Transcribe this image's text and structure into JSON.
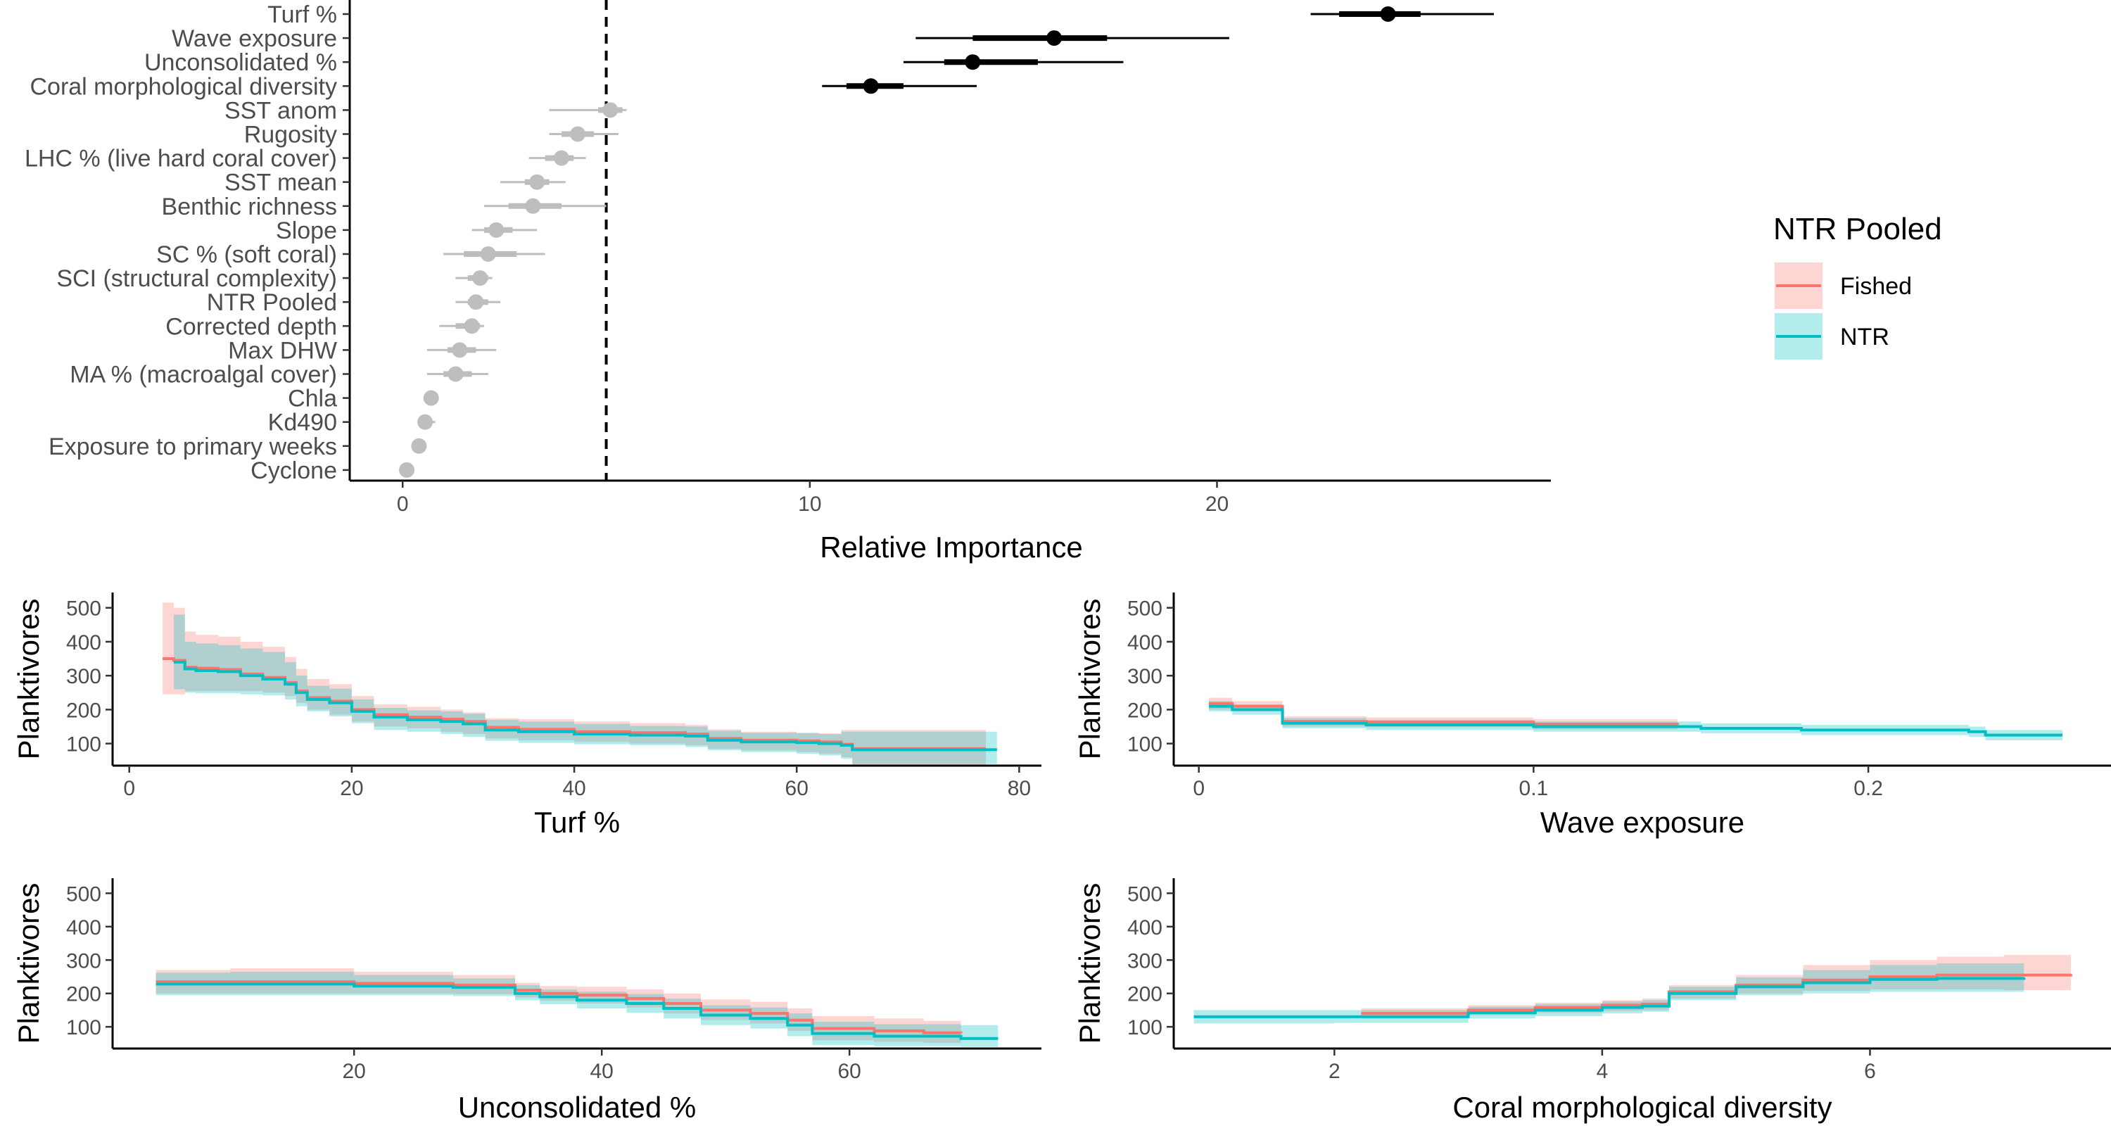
{
  "colors": {
    "fished": "#F8766D",
    "fished_band": "#F8766D",
    "ntr": "#00BFC4",
    "ntr_band": "#00BFC4",
    "important": "#000000",
    "unimportant": "#BEBEBE",
    "overlap_band": "#7F9A9A"
  },
  "legend": {
    "title": "NTR Pooled",
    "placement": "right",
    "items": [
      {
        "label": "Fished",
        "color_key": "fished"
      },
      {
        "label": "NTR",
        "color_key": "ntr"
      }
    ]
  },
  "chart_data": [
    {
      "id": "importance",
      "type": "dot-interval",
      "xlabel": "Relative Importance",
      "ylabel": "",
      "xlim": [
        -1.3,
        28.2
      ],
      "xticks": [
        0,
        10,
        20
      ],
      "threshold": 5,
      "grid": false,
      "variables": [
        {
          "label": "Turf %",
          "value": 24.2,
          "inner": [
            23.0,
            25.0
          ],
          "outer": [
            22.3,
            26.8
          ],
          "important": true
        },
        {
          "label": "Wave exposure",
          "value": 16.0,
          "inner": [
            14.0,
            17.3
          ],
          "outer": [
            12.6,
            20.3
          ],
          "important": true
        },
        {
          "label": "Unconsolidated %",
          "value": 14.0,
          "inner": [
            13.3,
            15.6
          ],
          "outer": [
            12.3,
            17.7
          ],
          "important": true
        },
        {
          "label": "Coral morphological diversity",
          "value": 11.5,
          "inner": [
            10.9,
            12.3
          ],
          "outer": [
            10.3,
            14.1
          ],
          "important": true
        },
        {
          "label": "SST anom",
          "value": 5.1,
          "inner": [
            4.8,
            5.4
          ],
          "outer": [
            3.6,
            5.5
          ],
          "important": false
        },
        {
          "label": "Rugosity",
          "value": 4.3,
          "inner": [
            3.9,
            4.7
          ],
          "outer": [
            3.6,
            5.3
          ],
          "important": false
        },
        {
          "label": "LHC % (live hard coral cover)",
          "value": 3.9,
          "inner": [
            3.5,
            4.2
          ],
          "outer": [
            3.1,
            4.5
          ],
          "important": false
        },
        {
          "label": "SST mean",
          "value": 3.3,
          "inner": [
            3.0,
            3.6
          ],
          "outer": [
            2.4,
            4.0
          ],
          "important": false
        },
        {
          "label": "Benthic richness",
          "value": 3.2,
          "inner": [
            2.6,
            3.9
          ],
          "outer": [
            2.0,
            5.0
          ],
          "important": false
        },
        {
          "label": "Slope",
          "value": 2.3,
          "inner": [
            2.0,
            2.7
          ],
          "outer": [
            1.7,
            3.3
          ],
          "important": false
        },
        {
          "label": "SC % (soft coral)",
          "value": 2.1,
          "inner": [
            1.5,
            2.8
          ],
          "outer": [
            1.0,
            3.5
          ],
          "important": false
        },
        {
          "label": "SCI (structural complexity)",
          "value": 1.9,
          "inner": [
            1.6,
            2.1
          ],
          "outer": [
            1.3,
            2.2
          ],
          "important": false
        },
        {
          "label": "NTR Pooled",
          "value": 1.8,
          "inner": [
            1.6,
            2.1
          ],
          "outer": [
            1.3,
            2.4
          ],
          "important": false
        },
        {
          "label": "Corrected depth",
          "value": 1.7,
          "inner": [
            1.3,
            1.9
          ],
          "outer": [
            0.9,
            2.0
          ],
          "important": false
        },
        {
          "label": "Max DHW",
          "value": 1.4,
          "inner": [
            1.1,
            1.8
          ],
          "outer": [
            0.6,
            2.3
          ],
          "important": false
        },
        {
          "label": "MA % (macroalgal cover)",
          "value": 1.3,
          "inner": [
            1.0,
            1.7
          ],
          "outer": [
            0.6,
            2.1
          ],
          "important": false
        },
        {
          "label": "Chla",
          "value": 0.7,
          "inner": [
            0.6,
            0.8
          ],
          "outer": [
            0.55,
            0.85
          ],
          "important": false
        },
        {
          "label": "Kd490",
          "value": 0.55,
          "inner": [
            0.45,
            0.7
          ],
          "outer": [
            0.4,
            0.8
          ],
          "important": false
        },
        {
          "label": "Exposure to primary weeks",
          "value": 0.4,
          "inner": [
            0.35,
            0.5
          ],
          "outer": [
            0.3,
            0.55
          ],
          "important": false
        },
        {
          "label": "Cyclone",
          "value": 0.1,
          "inner": [
            0.05,
            0.15
          ],
          "outer": [
            0.0,
            0.2
          ],
          "important": false
        }
      ]
    },
    {
      "id": "pdp-turf",
      "type": "line",
      "xlabel": "Turf %",
      "ylabel": "Planktivores",
      "xlim": [
        -1.5,
        82
      ],
      "ylim": [
        35,
        545
      ],
      "xticks": [
        0,
        20,
        40,
        60,
        80
      ],
      "yticks": [
        100,
        200,
        300,
        400,
        500
      ],
      "series": [
        {
          "name": "Fished",
          "color_key": "fished",
          "x": [
            3,
            4,
            5,
            6,
            8,
            10,
            12,
            14,
            15,
            16,
            18,
            20,
            22,
            25,
            28,
            30,
            32,
            35,
            40,
            45,
            50,
            52,
            55,
            60,
            62,
            64,
            65,
            70,
            77
          ],
          "y": [
            350,
            345,
            325,
            322,
            318,
            305,
            295,
            280,
            255,
            235,
            225,
            200,
            185,
            178,
            172,
            165,
            148,
            142,
            135,
            132,
            128,
            115,
            110,
            108,
            105,
            98,
            85,
            85,
            85
          ],
          "lower": [
            245,
            245,
            255,
            255,
            255,
            255,
            250,
            240,
            220,
            200,
            185,
            165,
            150,
            145,
            135,
            128,
            115,
            110,
            105,
            100,
            95,
            85,
            80,
            75,
            70,
            60,
            35,
            35,
            35
          ],
          "upper": [
            515,
            500,
            430,
            420,
            415,
            400,
            385,
            355,
            320,
            290,
            275,
            240,
            215,
            208,
            200,
            192,
            175,
            172,
            165,
            160,
            155,
            142,
            135,
            132,
            130,
            140,
            140,
            140,
            140
          ]
        },
        {
          "name": "NTR",
          "color_key": "ntr",
          "x": [
            4,
            5,
            6,
            8,
            10,
            12,
            14,
            15,
            16,
            18,
            20,
            22,
            25,
            28,
            30,
            32,
            35,
            40,
            45,
            50,
            52,
            55,
            60,
            62,
            64,
            65,
            70,
            78
          ],
          "y": [
            340,
            320,
            315,
            312,
            300,
            290,
            275,
            250,
            230,
            220,
            195,
            178,
            170,
            165,
            158,
            140,
            135,
            128,
            125,
            122,
            110,
            105,
            103,
            100,
            95,
            82,
            82,
            82
          ],
          "lower": [
            260,
            250,
            248,
            248,
            245,
            242,
            230,
            210,
            195,
            180,
            160,
            140,
            135,
            128,
            120,
            108,
            102,
            98,
            95,
            90,
            80,
            75,
            70,
            65,
            55,
            40,
            40,
            40
          ],
          "upper": [
            480,
            400,
            395,
            390,
            380,
            370,
            340,
            300,
            270,
            262,
            230,
            205,
            198,
            195,
            188,
            170,
            165,
            158,
            152,
            150,
            138,
            132,
            130,
            128,
            135,
            135,
            135,
            135
          ]
        }
      ]
    },
    {
      "id": "pdp-wave",
      "type": "line",
      "xlabel": "Wave exposure",
      "ylabel": "Planktivores",
      "xlim": [
        -0.0075,
        0.2725
      ],
      "ylim": [
        35,
        545
      ],
      "xticks": [
        0.0,
        0.1,
        0.2
      ],
      "series": [
        {
          "name": "Fished",
          "color_key": "fished",
          "x": [
            0.003,
            0.01,
            0.025,
            0.05,
            0.1,
            0.143
          ],
          "y": [
            218,
            210,
            165,
            163,
            157,
            155
          ],
          "lower": [
            200,
            195,
            150,
            148,
            142,
            140
          ],
          "upper": [
            235,
            225,
            180,
            177,
            172,
            170
          ]
        },
        {
          "name": "NTR",
          "color_key": "ntr",
          "x": [
            0.003,
            0.01,
            0.025,
            0.05,
            0.1,
            0.15,
            0.18,
            0.23,
            0.235,
            0.258
          ],
          "y": [
            210,
            200,
            160,
            155,
            150,
            145,
            140,
            135,
            125,
            125
          ],
          "lower": [
            195,
            185,
            145,
            140,
            135,
            130,
            125,
            120,
            110,
            110
          ],
          "upper": [
            225,
            215,
            175,
            170,
            165,
            160,
            155,
            150,
            140,
            140
          ]
        }
      ]
    },
    {
      "id": "pdp-uncons",
      "type": "line",
      "xlabel": "Unconsolidated %",
      "ylabel": "Planktivores",
      "xlim": [
        0.5,
        75.5
      ],
      "ylim": [
        35,
        545
      ],
      "xticks": [
        20,
        40,
        60
      ],
      "series": [
        {
          "name": "Fished",
          "color_key": "fished",
          "x": [
            4,
            10,
            20,
            28,
            33,
            35,
            38,
            42,
            45,
            48,
            52,
            55,
            57,
            62,
            66,
            69
          ],
          "y": [
            235,
            235,
            230,
            225,
            210,
            200,
            195,
            185,
            170,
            150,
            140,
            120,
            95,
            88,
            82,
            80
          ],
          "lower": [
            200,
            200,
            200,
            198,
            188,
            178,
            170,
            158,
            140,
            120,
            110,
            88,
            60,
            55,
            52,
            50
          ],
          "upper": [
            270,
            275,
            265,
            255,
            232,
            222,
            220,
            212,
            200,
            182,
            175,
            155,
            132,
            125,
            118,
            115
          ]
        },
        {
          "name": "NTR",
          "color_key": "ntr",
          "x": [
            4,
            10,
            20,
            28,
            33,
            35,
            38,
            42,
            45,
            48,
            52,
            55,
            57,
            62,
            69,
            72
          ],
          "y": [
            228,
            228,
            222,
            218,
            200,
            190,
            180,
            170,
            155,
            135,
            125,
            105,
            80,
            72,
            65,
            65
          ],
          "lower": [
            195,
            195,
            195,
            192,
            180,
            168,
            155,
            142,
            125,
            105,
            95,
            72,
            45,
            42,
            40,
            40
          ],
          "upper": [
            262,
            265,
            255,
            245,
            225,
            212,
            205,
            198,
            185,
            165,
            158,
            140,
            115,
            108,
            105,
            105
          ]
        }
      ]
    },
    {
      "id": "pdp-coral",
      "type": "line",
      "xlabel": "Coral morphological diversity",
      "ylabel": "Planktivores",
      "xlim": [
        0.8,
        7.8
      ],
      "ylim": [
        35,
        545
      ],
      "xticks": [
        2,
        4,
        6
      ],
      "series": [
        {
          "name": "Fished",
          "color_key": "fished",
          "x": [
            2.2,
            3.0,
            3.5,
            4.0,
            4.3,
            4.5,
            5.0,
            5.5,
            6.0,
            6.5,
            7.0,
            7.5
          ],
          "y": [
            140,
            150,
            158,
            165,
            168,
            205,
            225,
            240,
            250,
            255,
            255,
            258
          ],
          "lower": [
            125,
            135,
            142,
            148,
            150,
            185,
            200,
            208,
            212,
            212,
            210,
            210
          ],
          "upper": [
            155,
            165,
            172,
            180,
            185,
            225,
            255,
            285,
            300,
            310,
            315,
            320
          ]
        },
        {
          "name": "NTR",
          "color_key": "ntr",
          "x": [
            0.95,
            2.0,
            3.0,
            3.5,
            4.0,
            4.3,
            4.5,
            5.0,
            5.5,
            6.0,
            6.5,
            7.15
          ],
          "y": [
            130,
            130,
            142,
            150,
            158,
            162,
            200,
            220,
            232,
            242,
            245,
            248
          ],
          "lower": [
            110,
            112,
            125,
            132,
            140,
            145,
            180,
            195,
            200,
            205,
            205,
            205
          ],
          "upper": [
            150,
            150,
            160,
            168,
            176,
            180,
            220,
            248,
            270,
            285,
            290,
            290
          ]
        }
      ]
    }
  ]
}
